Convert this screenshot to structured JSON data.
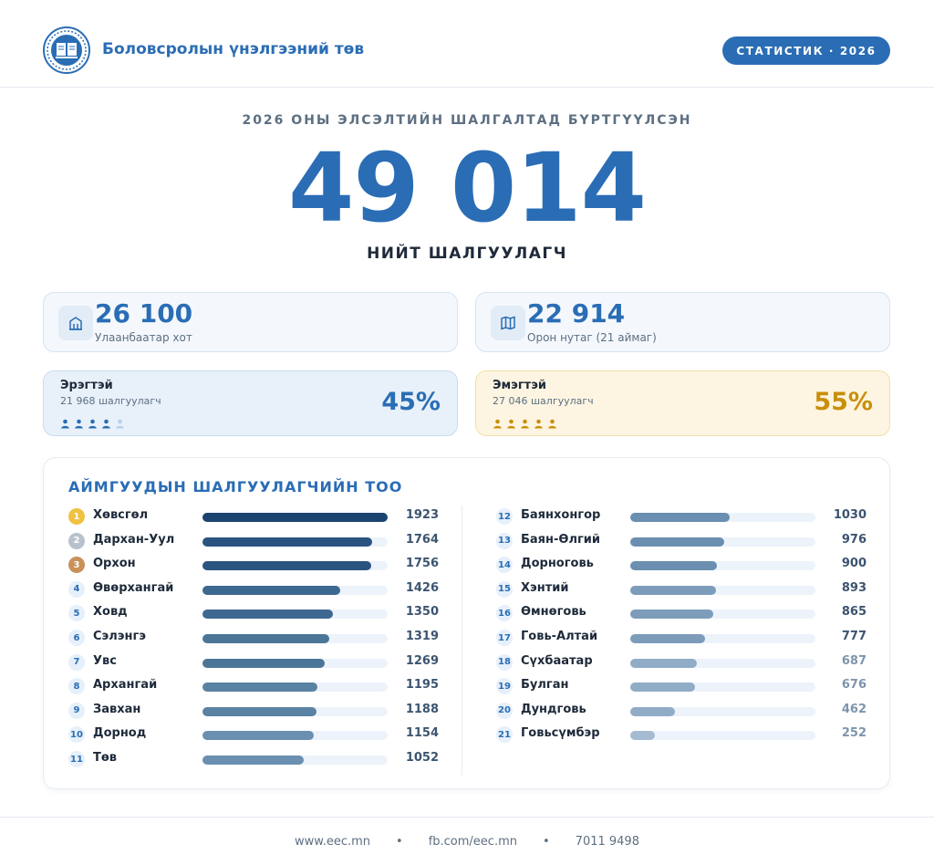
{
  "header": {
    "org_name": "Боловсролын үнэлгээний төв",
    "badge": "СТАТИСТИК · 2026"
  },
  "hero": {
    "kicker": "2026 ОНЫ ЭЛСЭЛТИЙН ШАЛГАЛТАД БҮРТГҮҮЛСЭН",
    "total": "49 014",
    "total_label": "НИЙТ ШАЛГУУЛАГЧ"
  },
  "locations": [
    {
      "value": "26 100",
      "label": "Улаанбаатар хот",
      "icon": "building-icon"
    },
    {
      "value": "22 914",
      "label": "Орон нутаг (21 аймаг)",
      "icon": "map-icon"
    }
  ],
  "gender": {
    "male": {
      "title": "Эрэгтэй",
      "count_text": "21 968 шалгуулагч",
      "percent": "45%",
      "percent_value": 45,
      "color": "#2a6db5",
      "filled_icons": 4
    },
    "female": {
      "title": "Эмэгтэй",
      "count_text": "27 046 шалгуулагч",
      "percent": "55%",
      "percent_value": 55,
      "color": "#c98f0a",
      "filled_icons": 5
    }
  },
  "ranking": {
    "title": "АЙМГУУДЫН ШАЛГУУЛАГЧИЙН ТОО",
    "max": 1923,
    "rows": [
      {
        "rank": "1",
        "name": "Хөвсгөл",
        "value": 1923
      },
      {
        "rank": "2",
        "name": "Дархан-Уул",
        "value": 1764
      },
      {
        "rank": "3",
        "name": "Орхон",
        "value": 1756
      },
      {
        "rank": "4",
        "name": "Өвөрхангай",
        "value": 1426
      },
      {
        "rank": "5",
        "name": "Ховд",
        "value": 1350
      },
      {
        "rank": "6",
        "name": "Сэлэнгэ",
        "value": 1319
      },
      {
        "rank": "7",
        "name": "Увс",
        "value": 1269
      },
      {
        "rank": "8",
        "name": "Архангай",
        "value": 1195
      },
      {
        "rank": "9",
        "name": "Завхан",
        "value": 1188
      },
      {
        "rank": "10",
        "name": "Дорнод",
        "value": 1154
      },
      {
        "rank": "11",
        "name": "Төв",
        "value": 1052
      },
      {
        "rank": "12",
        "name": "Баянхонгор",
        "value": 1030
      },
      {
        "rank": "13",
        "name": "Баян-Өлгий",
        "value": 976
      },
      {
        "rank": "14",
        "name": "Дорноговь",
        "value": 900
      },
      {
        "rank": "15",
        "name": "Хэнтий",
        "value": 893
      },
      {
        "rank": "16",
        "name": "Өмнөговь",
        "value": 865
      },
      {
        "rank": "17",
        "name": "Говь-Алтай",
        "value": 777
      },
      {
        "rank": "18",
        "name": "Сүхбаатар",
        "value": 687
      },
      {
        "rank": "19",
        "name": "Булган",
        "value": 676
      },
      {
        "rank": "20",
        "name": "Дундговь",
        "value": 462
      },
      {
        "rank": "21",
        "name": "Говьсүмбэр",
        "value": 252
      }
    ]
  },
  "footer": {
    "website": "www.eec.mn",
    "facebook": "fb.com/eec.mn",
    "phone": "7011 9498",
    "separator": "•"
  }
}
